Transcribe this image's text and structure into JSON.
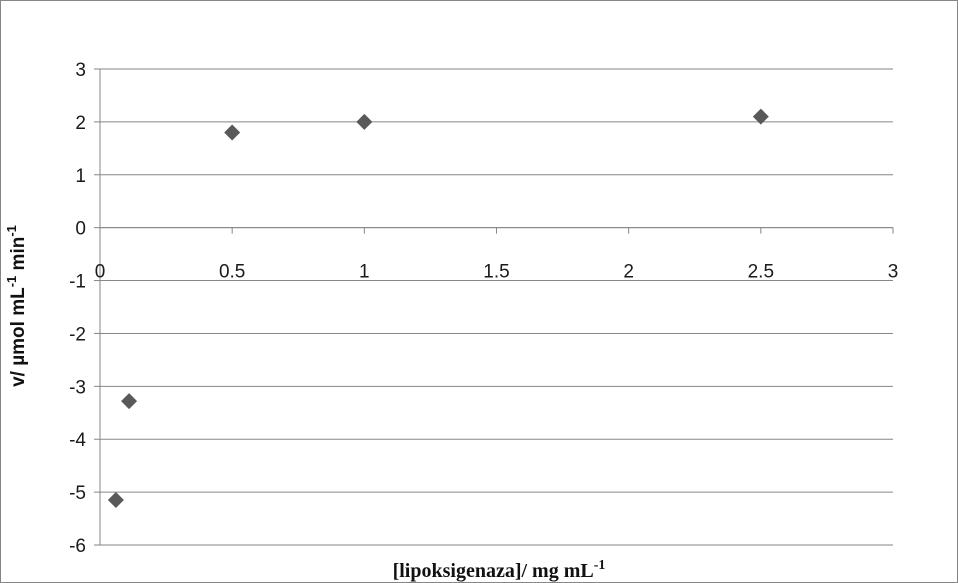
{
  "chart_data": {
    "type": "scatter",
    "title": "",
    "xlabel": {
      "main": "[lipoksigenaza]/ mg mL",
      "sup": "-1"
    },
    "ylabel": {
      "parts": [
        {
          "text": "v/ µmol mL",
          "sup": false
        },
        {
          "text": "-1",
          "sup": true
        },
        {
          "text": " min",
          "sup": false
        },
        {
          "text": "-1",
          "sup": true
        }
      ]
    },
    "xlim": [
      0,
      3
    ],
    "ylim": [
      -6,
      3
    ],
    "x_ticks": [
      0,
      0.5,
      1,
      1.5,
      2,
      2.5,
      3
    ],
    "x_tick_labels": [
      "0",
      "0.5",
      "1",
      "1.5",
      "2",
      "2.5",
      "3"
    ],
    "y_ticks": [
      3,
      2,
      1,
      0,
      -1,
      -2,
      -3,
      -4,
      -5,
      -6
    ],
    "y_tick_labels": [
      "3",
      "2",
      "1",
      "0",
      "-1",
      "-2",
      "-3",
      "-4",
      "-5",
      "-6"
    ],
    "grid": true,
    "legend": "none",
    "marker": "diamond",
    "marker_color": "#595959",
    "gridline_color": "#868686",
    "x": [
      0.06,
      0.11,
      0.5,
      1.0,
      2.5
    ],
    "y": [
      -5.15,
      -3.28,
      1.8,
      2.0,
      2.1
    ]
  }
}
